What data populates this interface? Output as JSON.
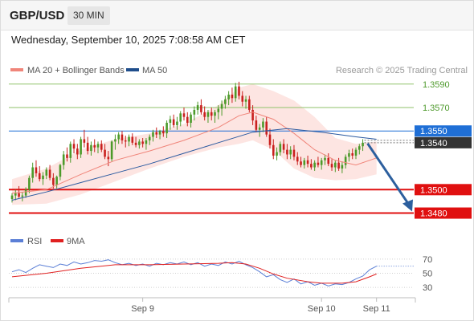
{
  "header": {
    "symbol": "GBP/USD",
    "interval": "30 MIN",
    "datetime": "Wednesday, September 10, 2025 7:08:58 AM CET"
  },
  "legend": {
    "items": [
      {
        "label": "MA 20 + Bollinger Bands",
        "color": "#f0857a"
      },
      {
        "label": "MA 50",
        "color": "#1f4e8c"
      }
    ],
    "attribution": "Research © 2025 Trading Central"
  },
  "rsi_legend": {
    "items": [
      {
        "label": "RSI",
        "color": "#5b7fd6"
      },
      {
        "label": "9MA",
        "color": "#e02020"
      }
    ]
  },
  "chart_data": [
    {
      "type": "candlestick",
      "pair": "GBP/USD",
      "interval": "30 MIN",
      "ylim": [
        1.3466,
        1.3596
      ],
      "levels": [
        {
          "value": 1.359,
          "label": "1.3590",
          "kind": "resistance",
          "color": "#8fc26a"
        },
        {
          "value": 1.357,
          "label": "1.3570",
          "kind": "resistance",
          "color": "#8fc26a"
        },
        {
          "value": 1.355,
          "label": "1.3550",
          "kind": "pivot",
          "color": "#1f6fd6"
        },
        {
          "value": 1.35,
          "label": "1.3500",
          "kind": "support",
          "color": "#e01010"
        },
        {
          "value": 1.348,
          "label": "1.3480",
          "kind": "support",
          "color": "#e01010"
        }
      ],
      "last_price": {
        "value": 1.354,
        "label": "1.3540"
      },
      "x_ticks": [
        "Sep 9",
        "Sep 10",
        "Sep 11"
      ],
      "candles": [
        [
          1.3492,
          1.3497,
          1.3489,
          1.3495
        ],
        [
          1.3495,
          1.35,
          1.3491,
          1.3497
        ],
        [
          1.3497,
          1.3503,
          1.3493,
          1.3494
        ],
        [
          1.3494,
          1.3498,
          1.349,
          1.3495
        ],
        [
          1.3495,
          1.3502,
          1.3493,
          1.35
        ],
        [
          1.35,
          1.3512,
          1.3497,
          1.351
        ],
        [
          1.351,
          1.3523,
          1.3506,
          1.3519
        ],
        [
          1.3519,
          1.3525,
          1.3511,
          1.3514
        ],
        [
          1.3514,
          1.352,
          1.3507,
          1.3509
        ],
        [
          1.3509,
          1.3515,
          1.3504,
          1.3512
        ],
        [
          1.3512,
          1.3519,
          1.3509,
          1.3517
        ],
        [
          1.3517,
          1.3521,
          1.3508,
          1.351
        ],
        [
          1.351,
          1.3514,
          1.3501,
          1.3504
        ],
        [
          1.3504,
          1.3512,
          1.3501,
          1.3511
        ],
        [
          1.3511,
          1.3522,
          1.3508,
          1.3521
        ],
        [
          1.3521,
          1.3533,
          1.3517,
          1.353
        ],
        [
          1.353,
          1.3536,
          1.3524,
          1.3527
        ],
        [
          1.3527,
          1.3541,
          1.3523,
          1.3539
        ],
        [
          1.3539,
          1.3543,
          1.3531,
          1.3535
        ],
        [
          1.3535,
          1.3539,
          1.3526,
          1.353
        ],
        [
          1.353,
          1.3545,
          1.3527,
          1.3543
        ],
        [
          1.3543,
          1.3551,
          1.3536,
          1.354
        ],
        [
          1.354,
          1.3545,
          1.353,
          1.3533
        ],
        [
          1.3533,
          1.3541,
          1.3529,
          1.3538
        ],
        [
          1.3538,
          1.3543,
          1.3532,
          1.3536
        ],
        [
          1.3536,
          1.3541,
          1.3531,
          1.3539
        ],
        [
          1.3539,
          1.3542,
          1.3532,
          1.3534
        ],
        [
          1.3534,
          1.3539,
          1.3526,
          1.3528
        ],
        [
          1.3528,
          1.3533,
          1.352,
          1.3526
        ],
        [
          1.3526,
          1.3542,
          1.3524,
          1.3541
        ],
        [
          1.3541,
          1.3547,
          1.3534,
          1.3543
        ],
        [
          1.3543,
          1.3549,
          1.3539,
          1.3547
        ],
        [
          1.3547,
          1.355,
          1.3539,
          1.3542
        ],
        [
          1.3542,
          1.3546,
          1.3536,
          1.3541
        ],
        [
          1.3541,
          1.3547,
          1.3537,
          1.3545
        ],
        [
          1.3545,
          1.3548,
          1.3538,
          1.354
        ],
        [
          1.354,
          1.3545,
          1.3536,
          1.3538
        ],
        [
          1.3538,
          1.3543,
          1.3535,
          1.3541
        ],
        [
          1.3541,
          1.3544,
          1.3536,
          1.3539
        ],
        [
          1.3539,
          1.3544,
          1.3534,
          1.3542
        ],
        [
          1.3542,
          1.3547,
          1.3538,
          1.3545
        ],
        [
          1.3545,
          1.3551,
          1.3541,
          1.3549
        ],
        [
          1.3549,
          1.3553,
          1.3544,
          1.3547
        ],
        [
          1.3547,
          1.3551,
          1.3543,
          1.355
        ],
        [
          1.355,
          1.3554,
          1.3545,
          1.3548
        ],
        [
          1.3548,
          1.3559,
          1.3544,
          1.3557
        ],
        [
          1.3557,
          1.3563,
          1.3551,
          1.356
        ],
        [
          1.356,
          1.3564,
          1.3553,
          1.3555
        ],
        [
          1.3555,
          1.3562,
          1.3551,
          1.3558
        ],
        [
          1.3558,
          1.3567,
          1.3554,
          1.3565
        ],
        [
          1.3565,
          1.357,
          1.3559,
          1.3562
        ],
        [
          1.3562,
          1.3566,
          1.3554,
          1.3557
        ],
        [
          1.3557,
          1.3566,
          1.3553,
          1.3564
        ],
        [
          1.3564,
          1.3571,
          1.3559,
          1.3568
        ],
        [
          1.3568,
          1.3575,
          1.3564,
          1.3572
        ],
        [
          1.3572,
          1.3577,
          1.3564,
          1.3566
        ],
        [
          1.3566,
          1.3571,
          1.3559,
          1.3562
        ],
        [
          1.3562,
          1.3568,
          1.3557,
          1.3566
        ],
        [
          1.3566,
          1.357,
          1.3559,
          1.3563
        ],
        [
          1.3563,
          1.3568,
          1.3557,
          1.3566
        ],
        [
          1.3566,
          1.3572,
          1.356,
          1.3569
        ],
        [
          1.3569,
          1.3576,
          1.3563,
          1.3573
        ],
        [
          1.3573,
          1.358,
          1.3569,
          1.3577
        ],
        [
          1.3577,
          1.3584,
          1.3572,
          1.3581
        ],
        [
          1.3581,
          1.3587,
          1.3574,
          1.3578
        ],
        [
          1.3578,
          1.3591,
          1.3575,
          1.3588
        ],
        [
          1.3588,
          1.3592,
          1.3577,
          1.358
        ],
        [
          1.358,
          1.3584,
          1.3571,
          1.3575
        ],
        [
          1.3575,
          1.358,
          1.3569,
          1.3577
        ],
        [
          1.3577,
          1.358,
          1.3566,
          1.3568
        ],
        [
          1.3568,
          1.3572,
          1.3555,
          1.3559
        ],
        [
          1.3559,
          1.3563,
          1.3549,
          1.3551
        ],
        [
          1.3551,
          1.3556,
          1.3545,
          1.3553
        ],
        [
          1.3553,
          1.3561,
          1.3549,
          1.3558
        ],
        [
          1.3558,
          1.3562,
          1.3545,
          1.3547
        ],
        [
          1.3547,
          1.3552,
          1.3535,
          1.3538
        ],
        [
          1.3538,
          1.3543,
          1.3526,
          1.3529
        ],
        [
          1.3529,
          1.3536,
          1.3525,
          1.3532
        ],
        [
          1.3532,
          1.3541,
          1.3529,
          1.3539
        ],
        [
          1.3539,
          1.3543,
          1.3531,
          1.3534
        ],
        [
          1.3534,
          1.3539,
          1.3526,
          1.353
        ],
        [
          1.353,
          1.3537,
          1.3526,
          1.3534
        ],
        [
          1.3534,
          1.3538,
          1.3525,
          1.3528
        ],
        [
          1.3528,
          1.3532,
          1.3521,
          1.3524
        ],
        [
          1.3524,
          1.3528,
          1.3519,
          1.3521
        ],
        [
          1.3521,
          1.3527,
          1.3518,
          1.3525
        ],
        [
          1.3525,
          1.3529,
          1.3519,
          1.3522
        ],
        [
          1.3522,
          1.3526,
          1.3517,
          1.3519
        ],
        [
          1.3519,
          1.3525,
          1.3516,
          1.3523
        ],
        [
          1.3523,
          1.3528,
          1.3519,
          1.3521
        ],
        [
          1.3521,
          1.3527,
          1.3517,
          1.3525
        ],
        [
          1.3525,
          1.353,
          1.3521,
          1.3527
        ],
        [
          1.3527,
          1.3531,
          1.352,
          1.3522
        ],
        [
          1.3522,
          1.3526,
          1.3516,
          1.3519
        ],
        [
          1.3519,
          1.3525,
          1.3515,
          1.3523
        ],
        [
          1.3523,
          1.3527,
          1.3516,
          1.3518
        ],
        [
          1.3518,
          1.3524,
          1.3514,
          1.3521
        ],
        [
          1.3521,
          1.353,
          1.3518,
          1.3528
        ],
        [
          1.3528,
          1.3534,
          1.3524,
          1.3531
        ],
        [
          1.3531,
          1.3535,
          1.3526,
          1.3529
        ],
        [
          1.3529,
          1.3536,
          1.3526,
          1.3534
        ],
        [
          1.3534,
          1.3539,
          1.353,
          1.3537
        ],
        [
          1.3537,
          1.3543,
          1.3533,
          1.354
        ]
      ],
      "ma20": [
        [
          0,
          1.3497
        ],
        [
          10,
          1.35
        ],
        [
          20,
          1.3513
        ],
        [
          30,
          1.3525
        ],
        [
          40,
          1.3533
        ],
        [
          50,
          1.3542
        ],
        [
          60,
          1.3553
        ],
        [
          66,
          1.3563
        ],
        [
          70,
          1.3566
        ],
        [
          76,
          1.356
        ],
        [
          82,
          1.3548
        ],
        [
          88,
          1.3534
        ],
        [
          94,
          1.3525
        ],
        [
          100,
          1.3521
        ],
        [
          106,
          1.3527
        ]
      ],
      "bb_upper": [
        [
          0,
          1.3509
        ],
        [
          10,
          1.3518
        ],
        [
          20,
          1.3534
        ],
        [
          30,
          1.3543
        ],
        [
          40,
          1.3548
        ],
        [
          50,
          1.3556
        ],
        [
          60,
          1.3572
        ],
        [
          66,
          1.3587
        ],
        [
          70,
          1.359
        ],
        [
          76,
          1.3584
        ],
        [
          82,
          1.3576
        ],
        [
          88,
          1.3562
        ],
        [
          94,
          1.3544
        ],
        [
          100,
          1.3539
        ],
        [
          106,
          1.3541
        ]
      ],
      "bb_lower": [
        [
          0,
          1.3487
        ],
        [
          10,
          1.3488
        ],
        [
          20,
          1.3496
        ],
        [
          30,
          1.3507
        ],
        [
          40,
          1.3518
        ],
        [
          50,
          1.3528
        ],
        [
          60,
          1.3536
        ],
        [
          66,
          1.3539
        ],
        [
          70,
          1.3542
        ],
        [
          76,
          1.3534
        ],
        [
          82,
          1.3518
        ],
        [
          88,
          1.351
        ],
        [
          94,
          1.3508
        ],
        [
          100,
          1.3509
        ],
        [
          106,
          1.3513
        ]
      ],
      "ma50": [
        [
          0,
          1.3491
        ],
        [
          10,
          1.3498
        ],
        [
          20,
          1.3506
        ],
        [
          30,
          1.3514
        ],
        [
          40,
          1.3522
        ],
        [
          50,
          1.3531
        ],
        [
          60,
          1.354
        ],
        [
          70,
          1.3549
        ],
        [
          80,
          1.3552
        ],
        [
          90,
          1.3549
        ],
        [
          100,
          1.3545
        ],
        [
          106,
          1.3543
        ]
      ],
      "projection": {
        "from": 1.354,
        "to": 1.348
      }
    },
    {
      "type": "line",
      "name": "RSI",
      "ylim": [
        20,
        80
      ],
      "y_ticks": [
        70,
        50,
        30
      ],
      "series": [
        {
          "name": "RSI",
          "points": [
            [
              0,
              52
            ],
            [
              2,
              55
            ],
            [
              4,
              51
            ],
            [
              6,
              57
            ],
            [
              8,
              62
            ],
            [
              10,
              60
            ],
            [
              12,
              58
            ],
            [
              14,
              63
            ],
            [
              16,
              61
            ],
            [
              18,
              66
            ],
            [
              20,
              63
            ],
            [
              22,
              65
            ],
            [
              24,
              68
            ],
            [
              26,
              67
            ],
            [
              28,
              69
            ],
            [
              30,
              65
            ],
            [
              32,
              62
            ],
            [
              34,
              64
            ],
            [
              36,
              61
            ],
            [
              38,
              63
            ],
            [
              40,
              60
            ],
            [
              42,
              64
            ],
            [
              44,
              62
            ],
            [
              46,
              65
            ],
            [
              48,
              63
            ],
            [
              50,
              66
            ],
            [
              52,
              62
            ],
            [
              54,
              65
            ],
            [
              56,
              60
            ],
            [
              58,
              63
            ],
            [
              60,
              61
            ],
            [
              62,
              66
            ],
            [
              64,
              63
            ],
            [
              66,
              67
            ],
            [
              68,
              62
            ],
            [
              70,
              58
            ],
            [
              72,
              52
            ],
            [
              74,
              45
            ],
            [
              76,
              48
            ],
            [
              78,
              41
            ],
            [
              80,
              37
            ],
            [
              82,
              42
            ],
            [
              84,
              35
            ],
            [
              86,
              38
            ],
            [
              88,
              33
            ],
            [
              90,
              36
            ],
            [
              92,
              32
            ],
            [
              94,
              35
            ],
            [
              96,
              34
            ],
            [
              98,
              37
            ],
            [
              100,
              42
            ],
            [
              102,
              46
            ],
            [
              104,
              55
            ],
            [
              106,
              60
            ]
          ]
        },
        {
          "name": "9MA",
          "points": [
            [
              0,
              45
            ],
            [
              10,
              50
            ],
            [
              20,
              57
            ],
            [
              30,
              62
            ],
            [
              40,
              62
            ],
            [
              50,
              63
            ],
            [
              60,
              64
            ],
            [
              64,
              65
            ],
            [
              68,
              63
            ],
            [
              72,
              57
            ],
            [
              76,
              49
            ],
            [
              80,
              43
            ],
            [
              86,
              38
            ],
            [
              90,
              36
            ],
            [
              96,
              36
            ],
            [
              100,
              38
            ],
            [
              104,
              45
            ],
            [
              106,
              49
            ]
          ]
        }
      ]
    }
  ]
}
